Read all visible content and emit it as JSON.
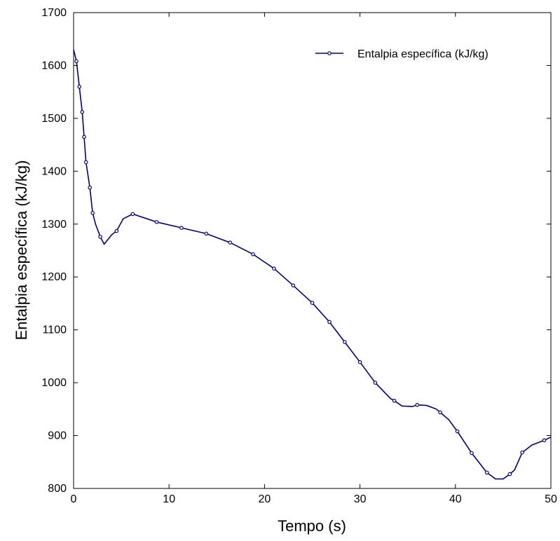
{
  "chart_data": {
    "type": "line",
    "title": "",
    "xlabel": "Tempo (s)",
    "ylabel": "Entalpia específica (kJ/kg)",
    "xlim": [
      0,
      50
    ],
    "ylim": [
      800,
      1700
    ],
    "xticks": [
      "0",
      "10",
      "20",
      "30",
      "40",
      "50"
    ],
    "yticks": [
      "800",
      "900",
      "1000",
      "1100",
      "1200",
      "1300",
      "1400",
      "1500",
      "1600",
      "1700"
    ],
    "grid": false,
    "legend_position": "top-right",
    "series": [
      {
        "name": "Entalpia específica (kJ/kg)",
        "color": "#000080",
        "x": [
          0.0,
          0.3,
          0.6,
          0.9,
          1.1,
          1.3,
          1.7,
          2.0,
          2.3,
          2.8,
          3.2,
          4.0,
          4.5,
          5.2,
          6.2,
          8.7,
          11.3,
          13.9,
          16.4,
          18.8,
          21.0,
          23.0,
          25.0,
          26.8,
          28.4,
          30.0,
          31.6,
          33.2,
          33.6,
          34.4,
          35.5,
          36.0,
          37.0,
          38.0,
          38.4,
          39.3,
          40.2,
          41.7,
          43.3,
          44.2,
          45.0,
          45.7,
          46.2,
          47.0,
          48.0,
          49.3,
          50.0
        ],
        "y": [
          1630,
          1608,
          1560,
          1512,
          1465,
          1417,
          1369,
          1321,
          1300,
          1276,
          1262,
          1280,
          1287,
          1310,
          1319,
          1304,
          1293,
          1282,
          1265,
          1243,
          1216,
          1184,
          1151,
          1115,
          1077,
          1039,
          1000,
          970,
          966,
          956,
          955,
          958,
          957,
          950,
          944,
          930,
          908,
          867,
          830,
          818,
          818,
          827,
          835,
          868,
          882,
          891,
          897
        ],
        "marker_x": [
          0.3,
          0.6,
          0.9,
          1.1,
          1.3,
          1.7,
          2.0,
          2.8,
          4.5,
          6.2,
          8.7,
          11.3,
          13.9,
          16.4,
          18.8,
          21.0,
          23.0,
          25.0,
          26.8,
          28.4,
          30.0,
          31.6,
          33.6,
          36.0,
          38.4,
          40.2,
          41.7,
          43.3,
          45.7,
          47.0,
          49.3
        ],
        "marker_y": [
          1608,
          1560,
          1512,
          1465,
          1417,
          1369,
          1321,
          1276,
          1287,
          1319,
          1304,
          1293,
          1282,
          1265,
          1243,
          1216,
          1184,
          1151,
          1115,
          1077,
          1039,
          1000,
          966,
          958,
          944,
          908,
          867,
          830,
          827,
          868,
          891
        ]
      }
    ]
  }
}
